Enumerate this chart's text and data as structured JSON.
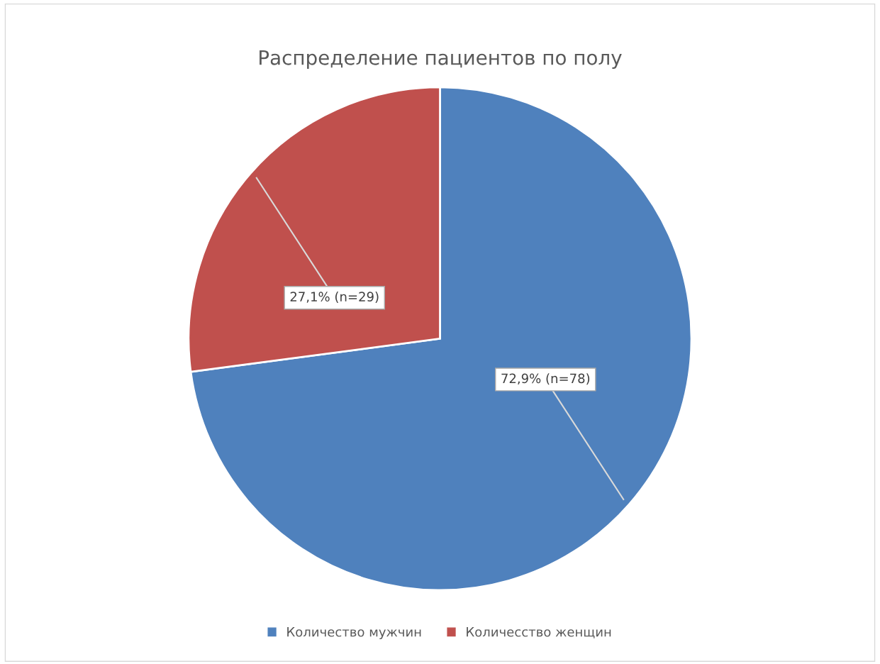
{
  "chart_data": {
    "type": "pie",
    "title": "Распределение пациентов по полу",
    "categories": [
      "Количество мужчин",
      "Количесство женщин"
    ],
    "values": [
      78,
      29
    ],
    "colors": [
      "#4f81bd",
      "#c0504d"
    ],
    "value_labels": [
      "72,9% (n=78)",
      "27,1% (n=29)"
    ],
    "legend": "bottom"
  }
}
